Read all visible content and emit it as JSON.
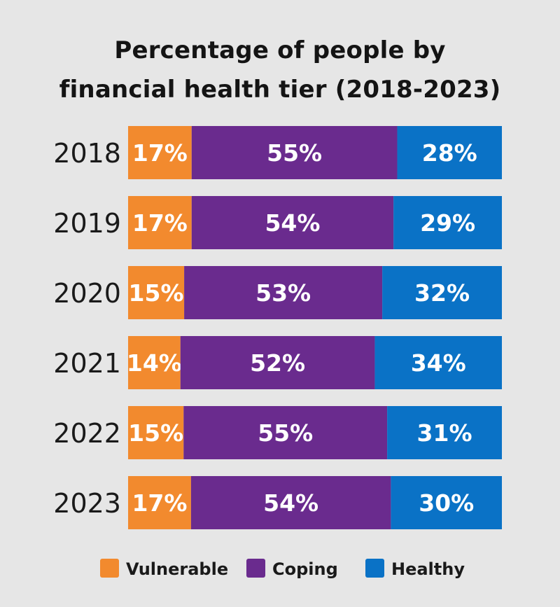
{
  "chart_data": {
    "type": "bar",
    "orientation": "horizontal",
    "stacked": true,
    "title_lines": [
      "Percentage of people by",
      "financial health tier (2018-2023)"
    ],
    "categories": [
      "2018",
      "2019",
      "2020",
      "2021",
      "2022",
      "2023"
    ],
    "series": [
      {
        "name": "Vulnerable",
        "color": "#f28a2e",
        "values": [
          17,
          17,
          15,
          14,
          15,
          17
        ]
      },
      {
        "name": "Coping",
        "color": "#6a2b8e",
        "values": [
          55,
          54,
          53,
          52,
          55,
          54
        ]
      },
      {
        "name": "Healthy",
        "color": "#0a72c6",
        "values": [
          28,
          29,
          32,
          34,
          31,
          30
        ]
      }
    ],
    "value_suffix": "%",
    "xlim": [
      0,
      100
    ],
    "xlabel": "",
    "ylabel": "",
    "grid": false,
    "legend_position": "bottom"
  }
}
